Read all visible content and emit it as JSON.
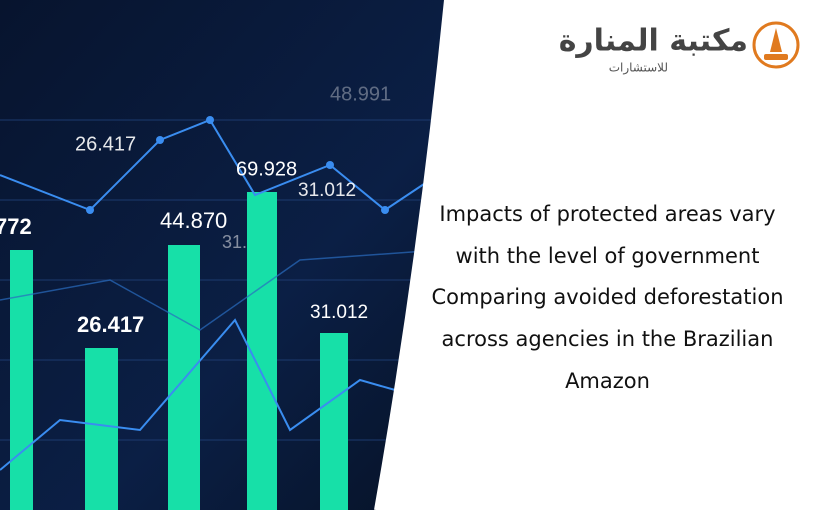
{
  "logo": {
    "name": "مكتبة المنارة",
    "tagline": "للاستشارات"
  },
  "heading_lines": [
    "Impacts of protected areas vary",
    "with the level of government",
    "Comparing avoided deforestation",
    "across agencies in the Brazilian",
    "Amazon"
  ],
  "image_labels": [
    "26.417",
    "48.991",
    "69.928",
    "31.012",
    "772",
    "44.870",
    "31.",
    "26.417",
    "31.012"
  ]
}
